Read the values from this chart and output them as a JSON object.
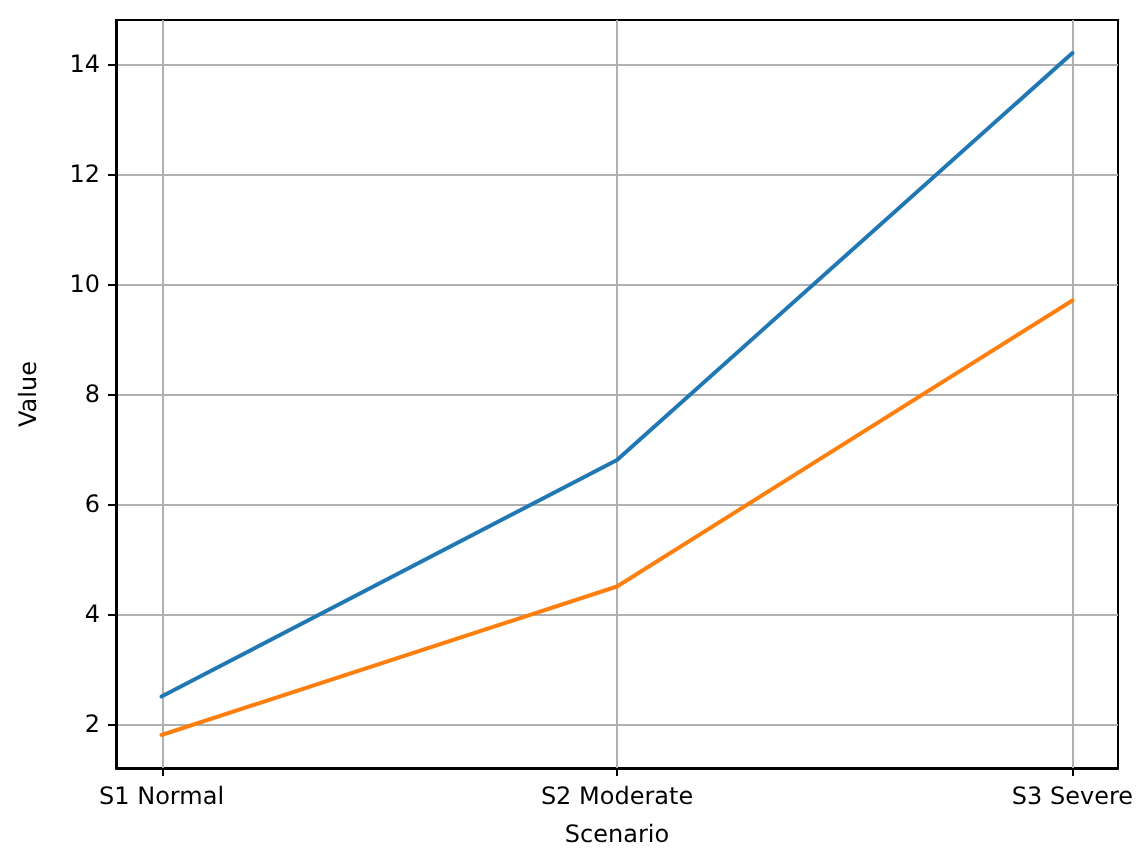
{
  "chart_data": {
    "type": "line",
    "xlabel": "Scenario",
    "ylabel": "Value",
    "categories": [
      "S1 Normal",
      "S2 Moderate",
      "S3 Severe"
    ],
    "series": [
      {
        "color": "#1f77b4",
        "values": [
          2.5,
          6.8,
          14.2
        ]
      },
      {
        "color": "#ff7f0e",
        "values": [
          1.8,
          4.5,
          9.7
        ]
      }
    ],
    "ylim": [
      1.2,
      14.8
    ],
    "yticks": [
      2,
      4,
      6,
      8,
      10,
      12,
      14
    ],
    "grid": true,
    "marker": "none",
    "line_style": "solid"
  }
}
